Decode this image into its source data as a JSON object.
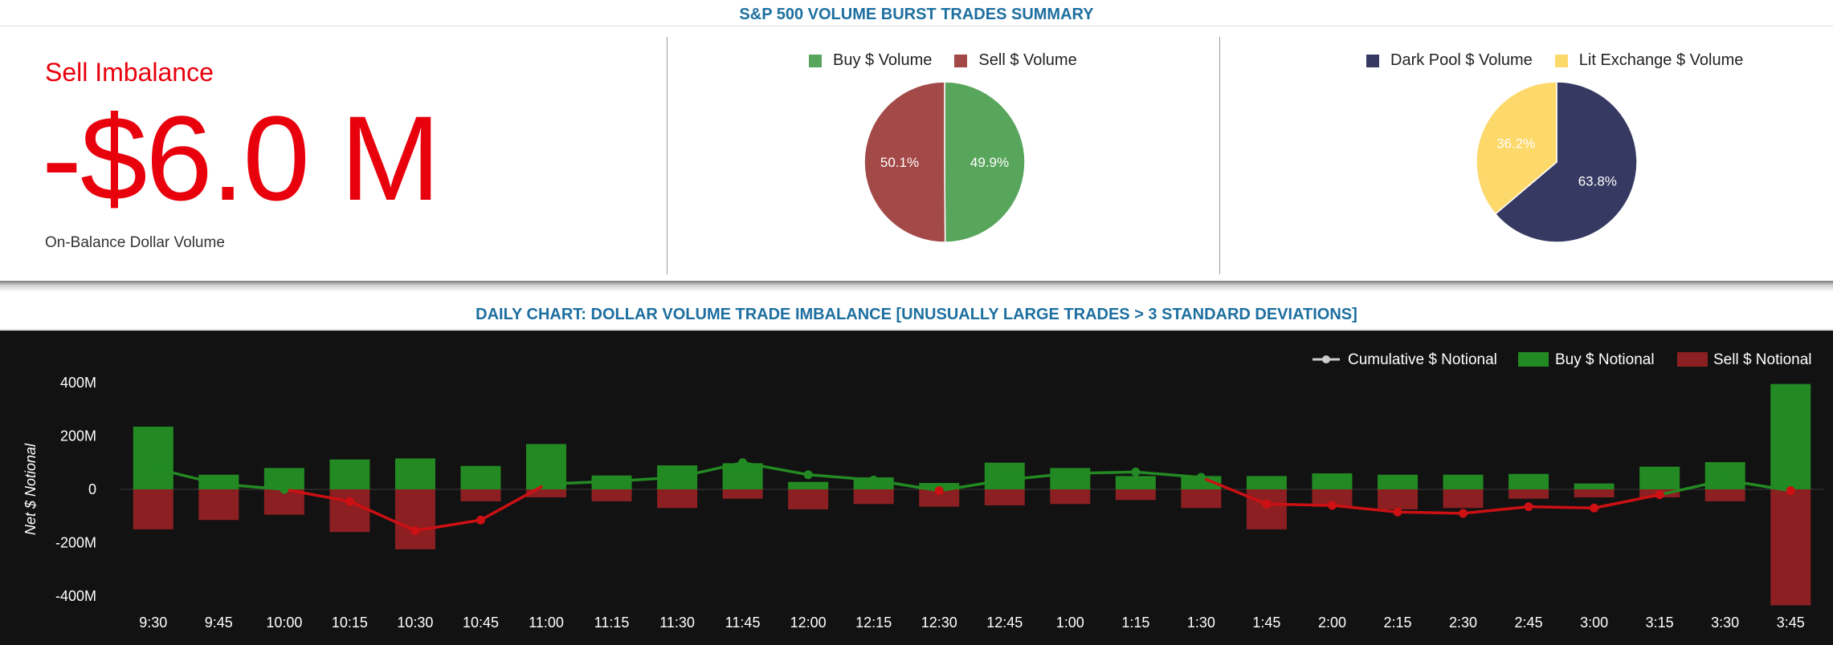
{
  "header": {
    "summary_title": "S&P 500 VOLUME BURST TRADES SUMMARY",
    "chart_title": "DAILY CHART: DOLLAR VOLUME TRADE IMBALANCE [UNUSUALLY LARGE TRADES > 3 STANDARD DEVIATIONS]"
  },
  "imbalance": {
    "label": "Sell Imbalance",
    "value": "-$6.0 M",
    "sublabel": "On-Balance Dollar Volume"
  },
  "pie_buy_sell": {
    "legend": [
      {
        "name": "Buy $ Volume",
        "color": "#58a55c"
      },
      {
        "name": "Sell $ Volume",
        "color": "#a34a48"
      }
    ],
    "slices": [
      {
        "name": "Buy $ Volume",
        "value": 49.9,
        "label": "49.9%",
        "color": "#58a55c"
      },
      {
        "name": "Sell $ Volume",
        "value": 50.1,
        "label": "50.1%",
        "color": "#a34a48"
      }
    ]
  },
  "pie_venue": {
    "legend": [
      {
        "name": "Dark Pool $ Volume",
        "color": "#363a62"
      },
      {
        "name": "Lit Exchange $ Volume",
        "color": "#fdd86a"
      }
    ],
    "slices": [
      {
        "name": "Dark Pool $ Volume",
        "value": 63.8,
        "label": "63.8%",
        "color": "#363a62"
      },
      {
        "name": "Lit Exchange $ Volume",
        "value": 36.2,
        "label": "36.2%",
        "color": "#fdd86a"
      }
    ]
  },
  "chart_data": {
    "type": "bar",
    "title": "",
    "ylabel": "Net $ Notional",
    "ylim": [
      -450,
      450
    ],
    "yticks": [
      400,
      200,
      0,
      -200,
      -400
    ],
    "ytick_labels": [
      "400M",
      "200M",
      "0",
      "-200M",
      "-400M"
    ],
    "grid": false,
    "legend_position": "top-right",
    "categories": [
      "9:30",
      "9:45",
      "10:00",
      "10:15",
      "10:30",
      "10:45",
      "11:00",
      "11:15",
      "11:30",
      "11:45",
      "12:00",
      "12:15",
      "12:30",
      "12:45",
      "1:00",
      "1:15",
      "1:30",
      "1:45",
      "2:00",
      "2:15",
      "2:30",
      "2:45",
      "3:00",
      "3:15",
      "3:30",
      "3:45"
    ],
    "series": [
      {
        "name": "Buy $ Notional",
        "color": "#238a23",
        "values": [
          235,
          55,
          80,
          112,
          116,
          88,
          170,
          52,
          90,
          98,
          28,
          45,
          24,
          100,
          80,
          50,
          50,
          50,
          60,
          55,
          55,
          58,
          22,
          85,
          102,
          395
        ]
      },
      {
        "name": "Sell $ Notional",
        "color": "#8b1f21",
        "values": [
          -150,
          -115,
          -95,
          -160,
          -225,
          -45,
          -30,
          -45,
          -70,
          -35,
          -75,
          -55,
          -65,
          -60,
          -55,
          -40,
          -70,
          -150,
          -65,
          -75,
          -70,
          -35,
          -30,
          -30,
          -45,
          -435
        ]
      },
      {
        "name": "Cumulative $ Notional",
        "values": [
          80,
          20,
          0,
          -45,
          -155,
          -115,
          20,
          30,
          45,
          100,
          55,
          35,
          -5,
          35,
          60,
          65,
          45,
          -55,
          -60,
          -85,
          -90,
          -65,
          -70,
          -20,
          35,
          -5
        ]
      }
    ],
    "legend": [
      {
        "name": "Cumulative $ Notional",
        "color": "#cccccc"
      },
      {
        "name": "Buy $ Notional",
        "color": "#238a23"
      },
      {
        "name": "Sell $ Notional",
        "color": "#8b1f21"
      }
    ],
    "line_colors": {
      "positive": "#238a23",
      "negative": "#cc1014"
    }
  }
}
